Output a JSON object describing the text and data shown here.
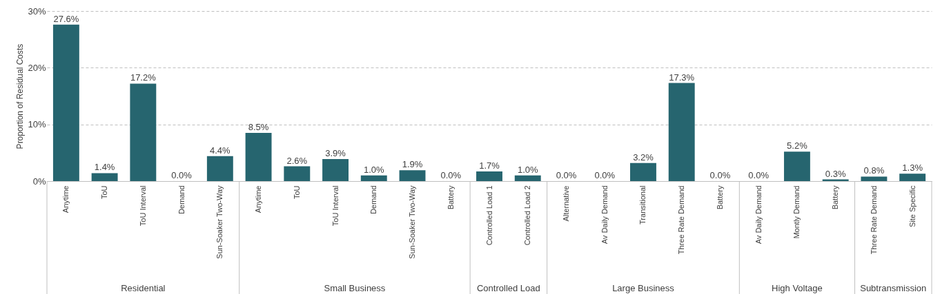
{
  "chart_data": {
    "type": "bar",
    "ylabel": "Proportion of Residual Costs",
    "categories": [
      "Anytime",
      "ToU",
      "ToU Interval",
      "Demand",
      "Sun-Soaker Two-Way",
      "Anytime",
      "ToU",
      "ToU Interval",
      "Demand",
      "Sun-Soaker Two-Way",
      "Battery",
      "Controlled Load 1",
      "Controlled Load 2",
      "Alternative",
      "Av Daily Demand",
      "Transitional",
      "Three Rate Demand",
      "Battery",
      "Av Daily Demand",
      "Montly Demand",
      "Battery",
      "Three Rate Demand",
      "Site Specific"
    ],
    "values": [
      27.6,
      1.4,
      17.2,
      0.0,
      4.4,
      8.5,
      2.6,
      3.9,
      1.0,
      1.9,
      0.0,
      1.7,
      1.0,
      0.0,
      0.0,
      3.2,
      17.3,
      0.0,
      0.0,
      5.2,
      0.3,
      0.8,
      1.3
    ],
    "value_labels": [
      "27.6%",
      "1.4%",
      "17.2%",
      "0.0%",
      "4.4%",
      "8.5%",
      "2.6%",
      "3.9%",
      "1.0%",
      "1.9%",
      "0.0%",
      "1.7%",
      "1.0%",
      "0.0%",
      "0.0%",
      "3.2%",
      "17.3%",
      "0.0%",
      "0.0%",
      "5.2%",
      "0.3%",
      "0.8%",
      "1.3%"
    ],
    "color": "#26656f",
    "ylim": [
      0,
      30
    ],
    "yticks": [
      {
        "value": 0,
        "label": "0%"
      },
      {
        "value": 10,
        "label": "10%"
      },
      {
        "value": 20,
        "label": "20%"
      },
      {
        "value": 30,
        "label": "30%"
      }
    ],
    "grid": "y",
    "annotations": [
      "Residential",
      "Small Business",
      "Controlled Load",
      "Large Business",
      "High Voltage",
      "Subtransmission"
    ]
  }
}
